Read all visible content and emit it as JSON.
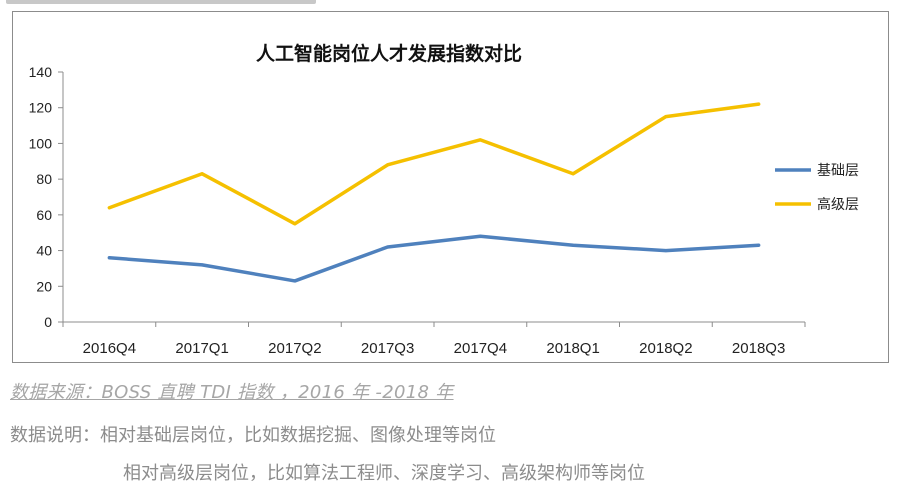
{
  "chart_data": {
    "type": "line",
    "title": "人工智能岗位人才发展指数对比",
    "categories": [
      "2016Q4",
      "2017Q1",
      "2017Q2",
      "2017Q3",
      "2017Q4",
      "2018Q1",
      "2018Q2",
      "2018Q3"
    ],
    "series": [
      {
        "name": "基础层",
        "color": "#4f81bd",
        "values": [
          36,
          32,
          23,
          42,
          48,
          43,
          40,
          43
        ]
      },
      {
        "name": "高级层",
        "color": "#f5c000",
        "values": [
          64,
          83,
          55,
          88,
          102,
          83,
          115,
          122
        ]
      }
    ],
    "yticks": [
      "0",
      "20",
      "40",
      "60",
      "80",
      "100",
      "120",
      "140"
    ],
    "ylim": [
      0,
      140
    ],
    "grid": false,
    "legend_position": "right"
  },
  "footer": {
    "source": "数据来源：BOSS 直聘 TDI 指数 ，2016 年 -2018 年",
    "note_line1": "数据说明：相对基础层岗位，比如数据挖掘、图像处理等岗位",
    "note_line2": "相对高级层岗位，比如算法工程师、深度学习、高级架构师等岗位"
  }
}
